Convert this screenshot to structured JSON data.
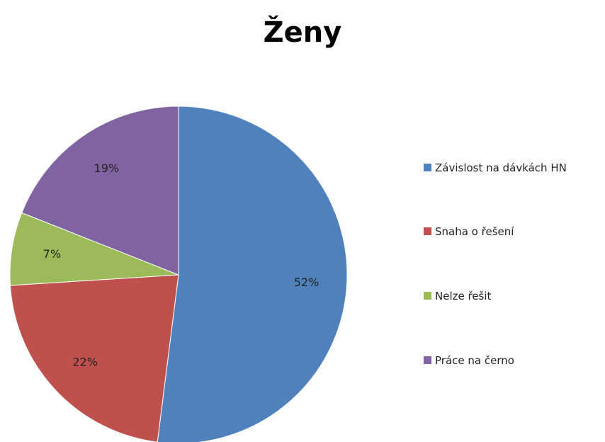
{
  "chart_data": {
    "type": "pie",
    "title": "Ženy",
    "categories": [
      "Závislost na dávkách HN",
      "Snaha o řešení",
      "Nelze řešit",
      "Práce na černo"
    ],
    "values": [
      52,
      22,
      7,
      19
    ],
    "value_labels": [
      "52%",
      "22%",
      "7%",
      "19%"
    ],
    "colors": [
      "#4f81bd",
      "#c0504d",
      "#9bbb59",
      "#8064a2"
    ]
  }
}
